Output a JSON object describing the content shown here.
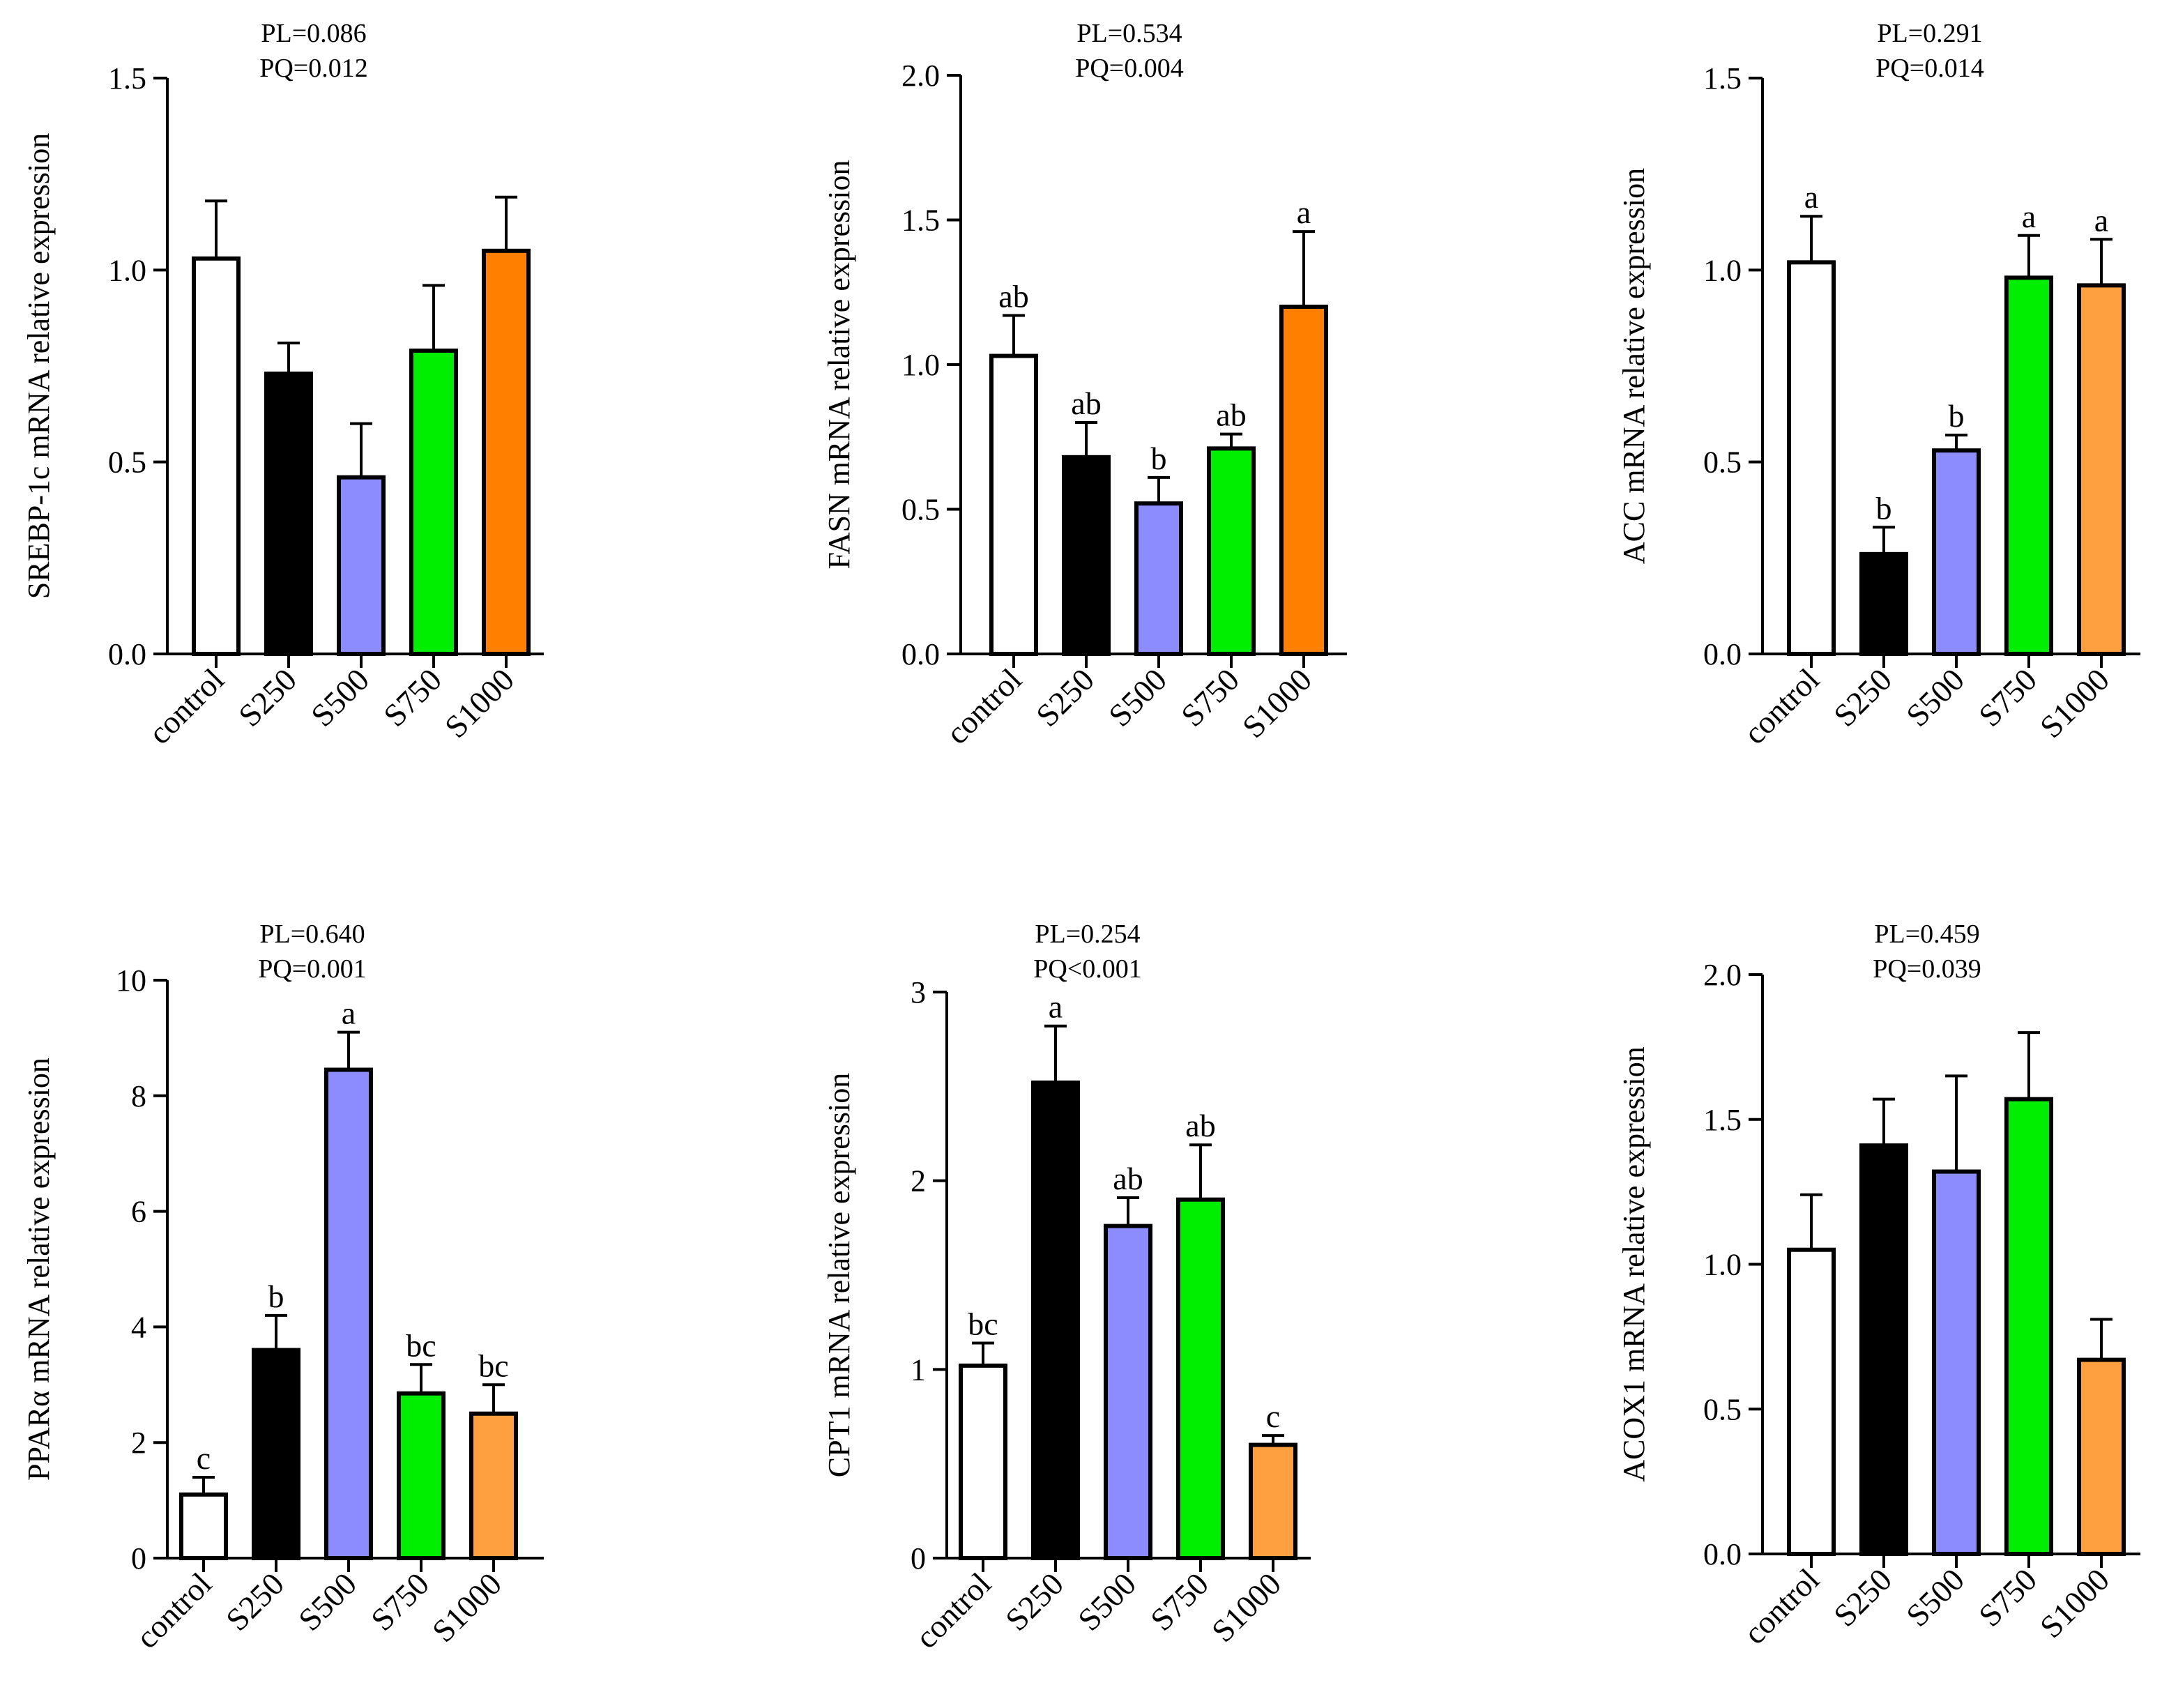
{
  "chart_data": [
    {
      "type": "bar",
      "ylabel": "SREBP-1c mRNA relative expression",
      "pvalues": [
        "PL=0.086",
        "PQ=0.012"
      ],
      "categories": [
        "control",
        "S250",
        "S500",
        "S750",
        "S1000"
      ],
      "values": [
        1.03,
        0.73,
        0.46,
        0.79,
        1.05
      ],
      "errors": [
        0.15,
        0.08,
        0.14,
        0.17,
        0.14
      ],
      "significance": [
        "",
        "",
        "",
        "",
        ""
      ],
      "colors": [
        "#ffffff",
        "#000000",
        "#8c8cff",
        "#00ee00",
        "#ff7f00"
      ],
      "ylim": [
        0,
        1.5
      ],
      "yticks": [
        0.0,
        0.5,
        1.0,
        1.5
      ],
      "ytick_labels": [
        "0.0",
        "0.5",
        "1.0",
        "1.5"
      ]
    },
    {
      "type": "bar",
      "ylabel": "FASN mRNA relative expression",
      "pvalues": [
        "PL=0.534",
        "PQ=0.004"
      ],
      "categories": [
        "control",
        "S250",
        "S500",
        "S750",
        "S1000"
      ],
      "values": [
        1.03,
        0.68,
        0.52,
        0.71,
        1.2
      ],
      "errors": [
        0.14,
        0.12,
        0.09,
        0.05,
        0.26
      ],
      "significance": [
        "ab",
        "ab",
        "b",
        "ab",
        "a"
      ],
      "colors": [
        "#ffffff",
        "#000000",
        "#8c8cff",
        "#00ee00",
        "#ff7f00"
      ],
      "ylim": [
        0,
        2.0
      ],
      "yticks": [
        0.0,
        0.5,
        1.0,
        1.5,
        2.0
      ],
      "ytick_labels": [
        "0.0",
        "0.5",
        "1.0",
        "1.5",
        "2.0"
      ]
    },
    {
      "type": "bar",
      "ylabel": "ACC mRNA relative expression",
      "pvalues": [
        "PL=0.291",
        "PQ=0.014"
      ],
      "categories": [
        "control",
        "S250",
        "S500",
        "S750",
        "S1000"
      ],
      "values": [
        1.02,
        0.26,
        0.53,
        0.98,
        0.96
      ],
      "errors": [
        0.12,
        0.07,
        0.04,
        0.11,
        0.12
      ],
      "significance": [
        "a",
        "b",
        "b",
        "a",
        "a"
      ],
      "colors": [
        "#ffffff",
        "#000000",
        "#8c8cff",
        "#00ee00",
        "#ffa040"
      ],
      "ylim": [
        0,
        1.5
      ],
      "yticks": [
        0.0,
        0.5,
        1.0,
        1.5
      ],
      "ytick_labels": [
        "0.0",
        "0.5",
        "1.0",
        "1.5"
      ]
    },
    {
      "type": "bar",
      "ylabel": "PPARα mRNA relative expression",
      "pvalues": [
        "PL=0.640",
        "PQ=0.001"
      ],
      "categories": [
        "control",
        "S250",
        "S500",
        "S750",
        "S1000"
      ],
      "values": [
        1.1,
        3.6,
        8.45,
        2.85,
        2.5
      ],
      "errors": [
        0.3,
        0.6,
        0.65,
        0.5,
        0.5
      ],
      "significance": [
        "c",
        "b",
        "a",
        "bc",
        "bc"
      ],
      "colors": [
        "#ffffff",
        "#000000",
        "#8c8cff",
        "#00ee00",
        "#ffa040"
      ],
      "ylim": [
        0,
        10
      ],
      "yticks": [
        0,
        2,
        4,
        6,
        8,
        10
      ],
      "ytick_labels": [
        "0",
        "2",
        "4",
        "6",
        "8",
        "10"
      ]
    },
    {
      "type": "bar",
      "ylabel": "CPT1 mRNA relative expression",
      "pvalues": [
        "PL=0.254",
        "PQ<0.001"
      ],
      "categories": [
        "control",
        "S250",
        "S500",
        "S750",
        "S1000"
      ],
      "values": [
        1.02,
        2.52,
        1.76,
        1.9,
        0.6
      ],
      "errors": [
        0.12,
        0.3,
        0.15,
        0.29,
        0.05
      ],
      "significance": [
        "bc",
        "a",
        "ab",
        "ab",
        "c"
      ],
      "colors": [
        "#ffffff",
        "#000000",
        "#8c8cff",
        "#00ee00",
        "#ffa040"
      ],
      "ylim": [
        0,
        3
      ],
      "yticks": [
        0,
        1,
        2,
        3
      ],
      "ytick_labels": [
        "0",
        "1",
        "2",
        "3"
      ]
    },
    {
      "type": "bar",
      "ylabel": "ACOX1 mRNA relative expression",
      "pvalues": [
        "PL=0.459",
        "PQ=0.039"
      ],
      "categories": [
        "control",
        "S250",
        "S500",
        "S750",
        "S1000"
      ],
      "values": [
        1.05,
        1.41,
        1.32,
        1.57,
        0.67
      ],
      "errors": [
        0.19,
        0.16,
        0.33,
        0.23,
        0.14
      ],
      "significance": [
        "",
        "",
        "",
        "",
        ""
      ],
      "colors": [
        "#ffffff",
        "#000000",
        "#8c8cff",
        "#00ee00",
        "#ffa040"
      ],
      "ylim": [
        0,
        2.0
      ],
      "yticks": [
        0.0,
        0.5,
        1.0,
        1.5,
        2.0
      ],
      "ytick_labels": [
        "0.0",
        "0.5",
        "1.0",
        "1.5",
        "2.0"
      ]
    }
  ]
}
